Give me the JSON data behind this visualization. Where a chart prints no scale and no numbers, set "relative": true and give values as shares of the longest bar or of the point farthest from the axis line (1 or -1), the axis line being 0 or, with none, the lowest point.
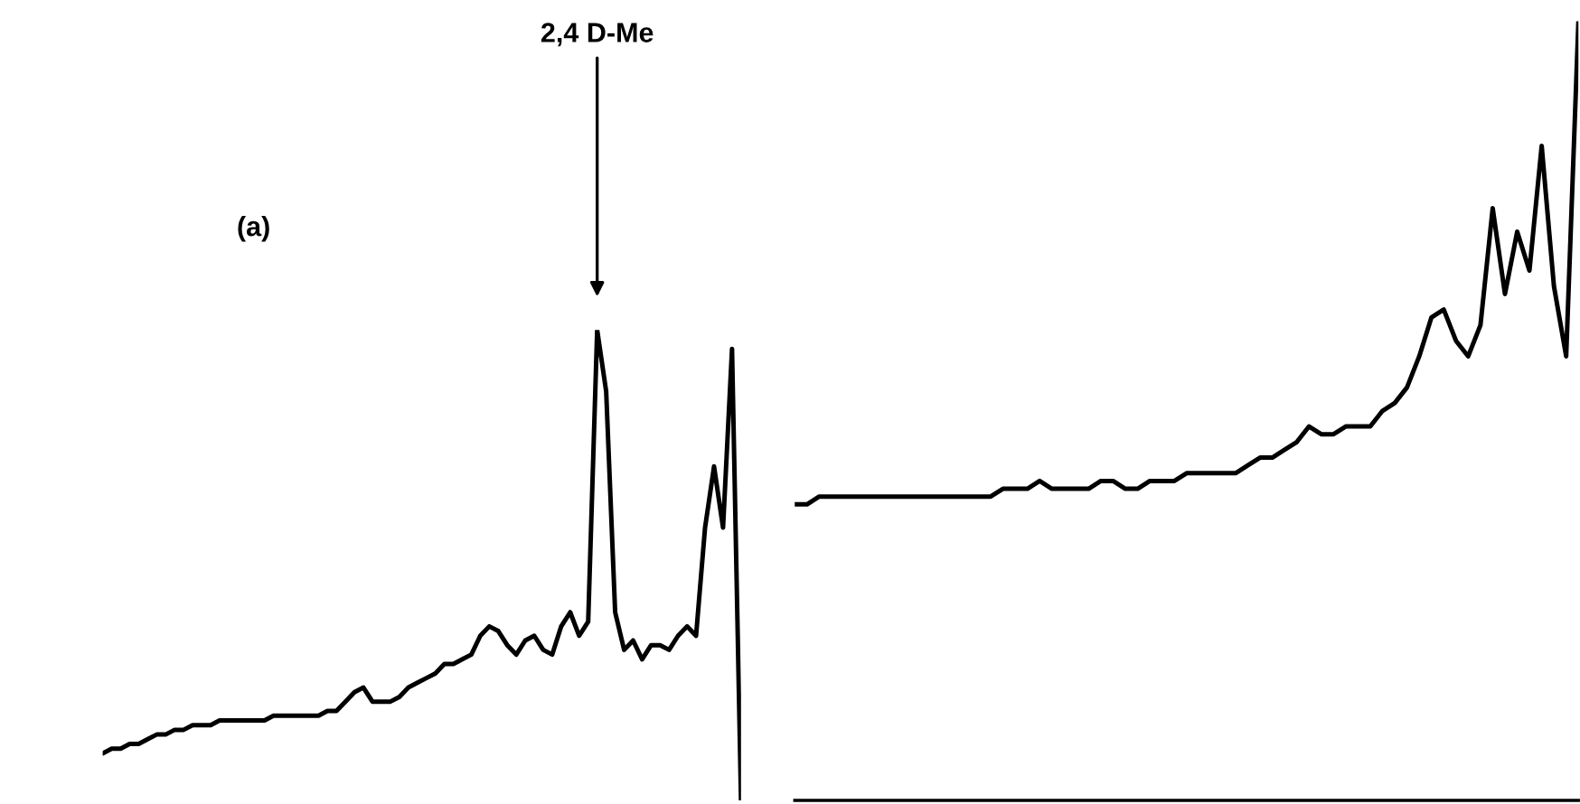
{
  "chart_data": [
    {
      "type": "line",
      "relative": true,
      "annotations": [
        "(a)",
        "2,4 D-Me"
      ],
      "categories": [
        null,
        null,
        null,
        null,
        null,
        null,
        null,
        null,
        null,
        null,
        null,
        null,
        null,
        null,
        null,
        null,
        null,
        null,
        null,
        null,
        null,
        null,
        null,
        null,
        null,
        null,
        null,
        null,
        null,
        null,
        null,
        null,
        null,
        null,
        null,
        null,
        null,
        null,
        null,
        null,
        null,
        null,
        null,
        null,
        null,
        null,
        null,
        null,
        null,
        null,
        null,
        null,
        null,
        null,
        null,
        null,
        null,
        null,
        null,
        null,
        null,
        null,
        null,
        null,
        null,
        null,
        null,
        null,
        null,
        null,
        null,
        null
      ],
      "series": [
        {
          "color": "#000000",
          "values": [
            0.1,
            0.11,
            0.11,
            0.12,
            0.12,
            0.13,
            0.14,
            0.14,
            0.15,
            0.15,
            0.16,
            0.16,
            0.16,
            0.17,
            0.17,
            0.17,
            0.17,
            0.17,
            0.17,
            0.18,
            0.18,
            0.18,
            0.18,
            0.18,
            0.18,
            0.19,
            0.19,
            0.21,
            0.23,
            0.24,
            0.21,
            0.21,
            0.21,
            0.22,
            0.24,
            0.25,
            0.26,
            0.27,
            0.29,
            0.29,
            0.3,
            0.31,
            0.35,
            0.37,
            0.36,
            0.33,
            0.31,
            0.34,
            0.35,
            0.32,
            0.31,
            0.37,
            0.4,
            0.35,
            0.38,
            1.0,
            0.87,
            0.4,
            0.32,
            0.34,
            0.3,
            0.33,
            0.33,
            0.32,
            0.35,
            0.37,
            0.35,
            0.58,
            0.71,
            0.58,
            0.96,
            0.0
          ]
        }
      ]
    },
    {
      "type": "line",
      "relative": true,
      "categories": [
        null,
        null,
        null,
        null,
        null,
        null,
        null,
        null,
        null,
        null,
        null,
        null,
        null,
        null,
        null,
        null,
        null,
        null,
        null,
        null,
        null,
        null,
        null,
        null,
        null,
        null,
        null,
        null,
        null,
        null,
        null,
        null,
        null,
        null,
        null,
        null,
        null,
        null,
        null,
        null,
        null,
        null,
        null,
        null,
        null,
        null,
        null,
        null,
        null,
        null,
        null,
        null,
        null,
        null,
        null,
        null,
        null,
        null,
        null,
        null,
        null,
        null,
        null,
        null,
        null
      ],
      "series": [
        {
          "color": "#000000",
          "values": [
            0.38,
            0.38,
            0.39,
            0.39,
            0.39,
            0.39,
            0.39,
            0.39,
            0.39,
            0.39,
            0.39,
            0.39,
            0.39,
            0.39,
            0.39,
            0.39,
            0.39,
            0.4,
            0.4,
            0.4,
            0.41,
            0.4,
            0.4,
            0.4,
            0.4,
            0.41,
            0.41,
            0.4,
            0.4,
            0.41,
            0.41,
            0.41,
            0.42,
            0.42,
            0.42,
            0.42,
            0.42,
            0.43,
            0.44,
            0.44,
            0.45,
            0.46,
            0.48,
            0.47,
            0.47,
            0.48,
            0.48,
            0.48,
            0.5,
            0.51,
            0.53,
            0.57,
            0.62,
            0.63,
            0.59,
            0.57,
            0.61,
            0.76,
            0.65,
            0.73,
            0.68,
            0.84,
            0.66,
            0.57,
            1.0
          ]
        }
      ]
    }
  ]
}
